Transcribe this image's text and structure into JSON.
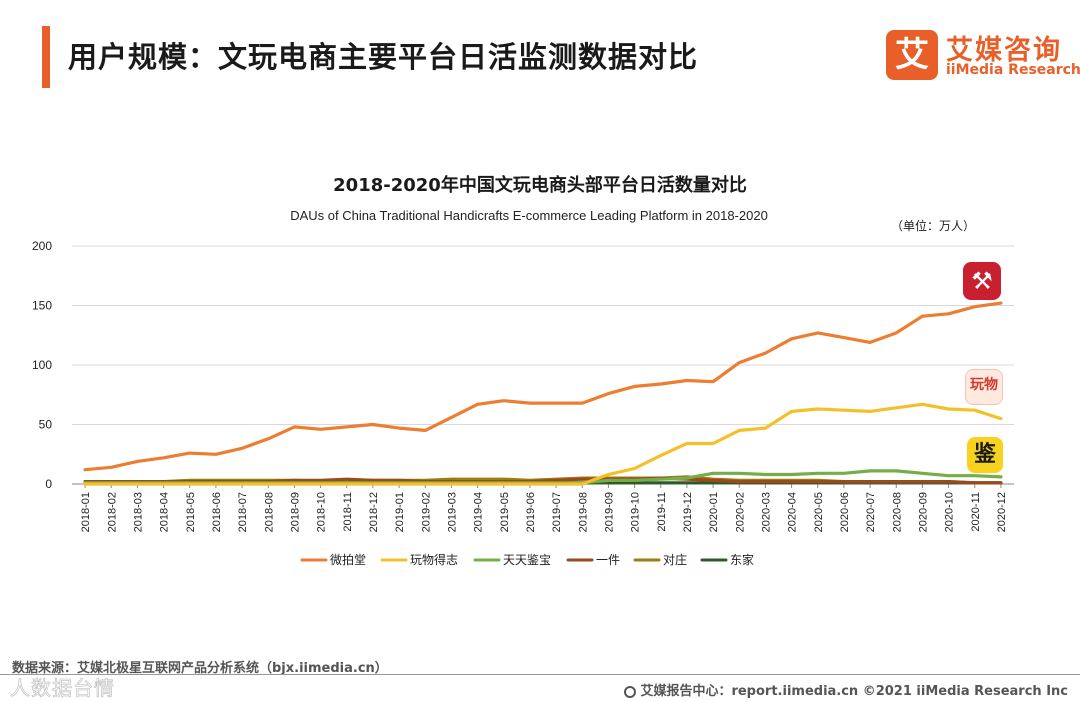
{
  "header": {
    "title": "用户规模：文玩电商主要平台日活监测数据对比",
    "brand_cn": "艾媒咨询",
    "brand_en": "iiMedia Research",
    "brand_logo_char": "艾",
    "accent_color": "#e95f2a"
  },
  "chart_data": {
    "type": "line",
    "title": "2018-2020年中国文玩电商头部平台日活数量对比",
    "subtitle": "DAUs of China Traditional Handicrafts E-commerce Leading Platform in 2018-2020",
    "unit_label": "（单位：万人）",
    "xlabel": "",
    "ylabel": "",
    "ylim": [
      0,
      200
    ],
    "yticks": [
      0,
      50,
      100,
      150,
      200
    ],
    "grid": true,
    "legend_position": "bottom",
    "categories": [
      "2018-01",
      "2018-02",
      "2018-03",
      "2018-04",
      "2018-05",
      "2018-06",
      "2018-07",
      "2018-08",
      "2018-09",
      "2018-10",
      "2018-11",
      "2018-12",
      "2019-01",
      "2019-02",
      "2019-03",
      "2019-04",
      "2019-05",
      "2019-06",
      "2019-07",
      "2019-08",
      "2019-09",
      "2019-10",
      "2019-11",
      "2019-12",
      "2020-01",
      "2020-02",
      "2020-03",
      "2020-04",
      "2020-05",
      "2020-06",
      "2020-07",
      "2020-08",
      "2020-09",
      "2020-10",
      "2020-11",
      "2020-12"
    ],
    "series": [
      {
        "name": "微拍堂",
        "color": "#ec7d31",
        "values": [
          12,
          14,
          19,
          22,
          26,
          25,
          30,
          38,
          48,
          46,
          48,
          50,
          47,
          45,
          56,
          67,
          70,
          68,
          68,
          68,
          76,
          82,
          84,
          87,
          86,
          102,
          110,
          122,
          127,
          123,
          119,
          127,
          141,
          143,
          149,
          152
        ]
      },
      {
        "name": "玩物得志",
        "color": "#f4c02a",
        "values": [
          0,
          0,
          0,
          0,
          0,
          0,
          0,
          0,
          0,
          0,
          0,
          0,
          0,
          0,
          0,
          0,
          0,
          0,
          0,
          0,
          8,
          13,
          24,
          34,
          34,
          45,
          47,
          61,
          63,
          62,
          61,
          64,
          67,
          63,
          62,
          55
        ]
      },
      {
        "name": "天天鉴宝",
        "color": "#74ad4a",
        "values": [
          1,
          1,
          1,
          1,
          1,
          1,
          1,
          1,
          1,
          1,
          1,
          1,
          1,
          1,
          1,
          1,
          1,
          1,
          1,
          1,
          3,
          3,
          4,
          5,
          9,
          9,
          8,
          8,
          9,
          9,
          11,
          11,
          9,
          7,
          7,
          6
        ]
      },
      {
        "name": "一件",
        "color": "#9b4a1c",
        "values": [
          2,
          2,
          2,
          2,
          2,
          2,
          2,
          2,
          3,
          3,
          4,
          3,
          3,
          2,
          2,
          2,
          2,
          2,
          3,
          4,
          4,
          4,
          5,
          4,
          3,
          2,
          2,
          2,
          2,
          2,
          2,
          2,
          2,
          2,
          1,
          1
        ]
      },
      {
        "name": "对庄",
        "color": "#a07a12",
        "values": [
          2,
          2,
          2,
          2,
          3,
          3,
          3,
          3,
          3,
          2,
          3,
          3,
          3,
          3,
          4,
          4,
          4,
          3,
          4,
          5,
          5,
          5,
          5,
          6,
          4,
          3,
          3,
          3,
          3,
          2,
          2,
          2,
          2,
          2,
          1,
          1
        ]
      },
      {
        "name": "东家",
        "color": "#2e5a2a",
        "values": [
          1,
          1,
          1,
          1,
          1,
          1,
          1,
          1,
          1,
          1,
          1,
          1,
          1,
          1,
          1,
          1,
          1,
          1,
          1,
          1,
          1,
          1,
          1,
          1,
          1,
          1,
          1,
          1,
          1,
          1,
          1,
          1,
          1,
          1,
          1,
          1
        ]
      }
    ]
  },
  "platform_icons": [
    {
      "name": "微拍堂",
      "symbol": "⚒",
      "color": "#c8202f"
    },
    {
      "name": "玩物得志",
      "symbol": "玩物",
      "color": "#d23a2a"
    },
    {
      "name": "天天鉴宝",
      "symbol": "鉴",
      "color": "#f7d21f"
    }
  ],
  "footer": {
    "source": "数据来源：艾媒北极星互联网产品分析系统（bjx.iimedia.cn）",
    "report": "艾媒报告中心：report.iimedia.cn   ©2021  iiMedia Research  Inc",
    "watermark": "人数据台情"
  }
}
